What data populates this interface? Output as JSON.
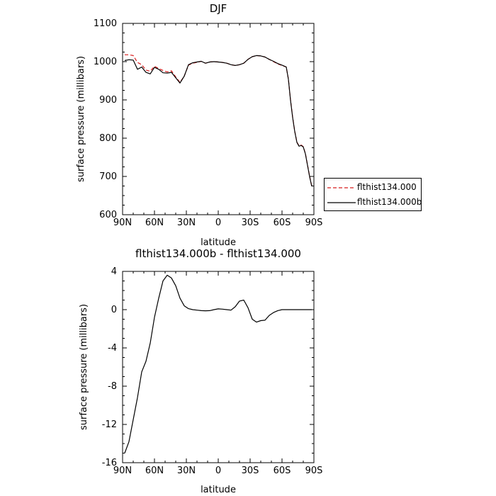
{
  "chart_data": [
    {
      "type": "line",
      "title": "DJF",
      "xlabel": "latitude",
      "ylabel": "surface pressure (millibars)",
      "xticks": [
        "90N",
        "60N",
        "30N",
        "0",
        "30S",
        "60S",
        "90S"
      ],
      "xlim": [
        90,
        -90
      ],
      "ylim": [
        600,
        1100
      ],
      "yticks": [
        "600",
        "700",
        "800",
        "900",
        "1000",
        "1100"
      ],
      "grid": false,
      "legend_placement": "right",
      "series": [
        {
          "name": "flthist134.000",
          "color": "#d81e1e",
          "dash": "dashed",
          "x": [
            88,
            84,
            80,
            76,
            72,
            68,
            64,
            60,
            56,
            52,
            48,
            44,
            40,
            36,
            32,
            28,
            24,
            20,
            16,
            12,
            8,
            4,
            0,
            -4,
            -8,
            -12,
            -16,
            -20,
            -24,
            -28,
            -32,
            -36,
            -40,
            -44,
            -48,
            -52,
            -56,
            -60,
            -64,
            -66,
            -68,
            -70,
            -72,
            -74,
            -76,
            -78,
            -80,
            -82,
            -84,
            -86,
            -88
          ],
          "y": [
            1018,
            1018,
            1016,
            998,
            992,
            978,
            975,
            988,
            982,
            977,
            973,
            976,
            960,
            946,
            962,
            991,
            996,
            998,
            1001,
            996,
            999,
            1000,
            999,
            998,
            996,
            992,
            990,
            992,
            996,
            1006,
            1013,
            1016,
            1015,
            1012,
            1006,
            1000,
            994,
            990,
            986,
            955,
            900,
            855,
            818,
            790,
            780,
            782,
            778,
            760,
            730,
            700,
            675
          ]
        },
        {
          "name": "flthist134.000b",
          "color": "#000000",
          "dash": "solid",
          "x": [
            88,
            84,
            80,
            76,
            72,
            68,
            64,
            60,
            56,
            52,
            48,
            44,
            40,
            36,
            32,
            28,
            24,
            20,
            16,
            12,
            8,
            4,
            0,
            -4,
            -8,
            -12,
            -16,
            -20,
            -24,
            -28,
            -32,
            -36,
            -40,
            -44,
            -48,
            -52,
            -56,
            -60,
            -64,
            -66,
            -68,
            -70,
            -72,
            -74,
            -76,
            -78,
            -80,
            -82,
            -84,
            -86,
            -88
          ],
          "y": [
            1003,
            1005,
            1004,
            980,
            986,
            972,
            968,
            985,
            980,
            971,
            970,
            972,
            958,
            944,
            962,
            992,
            997,
            999,
            1001,
            996,
            999,
            1000,
            999,
            998,
            996,
            992,
            990,
            992,
            996,
            1006,
            1013,
            1016,
            1015,
            1012,
            1006,
            1001,
            995,
            991,
            986,
            954,
            899,
            854,
            817,
            789,
            779,
            781,
            777,
            759,
            729,
            699,
            674
          ]
        }
      ]
    },
    {
      "type": "line",
      "title": "flthist134.000b - flthist134.000",
      "xlabel": "latitude",
      "ylabel": "surface pressure (millibars)",
      "xticks": [
        "90N",
        "60N",
        "30N",
        "0",
        "30S",
        "60S",
        "90S"
      ],
      "xlim": [
        90,
        -90
      ],
      "ylim": [
        -16,
        4
      ],
      "yticks": [
        "-16",
        "-12",
        "-8",
        "-4",
        "0",
        "4"
      ],
      "grid": false,
      "series": [
        {
          "color": "#000000",
          "dash": "solid",
          "x": [
            88,
            84,
            80,
            76,
            72,
            68,
            64,
            60,
            56,
            52,
            48,
            44,
            40,
            36,
            32,
            28,
            24,
            20,
            16,
            12,
            8,
            4,
            0,
            -4,
            -8,
            -12,
            -16,
            -20,
            -24,
            -28,
            -32,
            -36,
            -40,
            -44,
            -48,
            -52,
            -56,
            -60,
            -64,
            -68,
            -72,
            -76,
            -80,
            -84,
            -88
          ],
          "y": [
            -15,
            -13.8,
            -11.5,
            -9.2,
            -6.5,
            -5.4,
            -3.5,
            -0.8,
            1.2,
            3.0,
            3.6,
            3.3,
            2.5,
            1.2,
            0.4,
            0.1,
            0.0,
            -0.05,
            -0.1,
            -0.12,
            -0.1,
            0.0,
            0.08,
            0.05,
            0.0,
            -0.05,
            0.3,
            0.9,
            1.0,
            0.2,
            -1.0,
            -1.3,
            -1.15,
            -1.1,
            -0.6,
            -0.3,
            -0.1,
            0.0,
            0.0,
            0.0,
            0.0,
            0.0,
            0.0,
            0.0,
            0.0
          ]
        }
      ]
    }
  ]
}
